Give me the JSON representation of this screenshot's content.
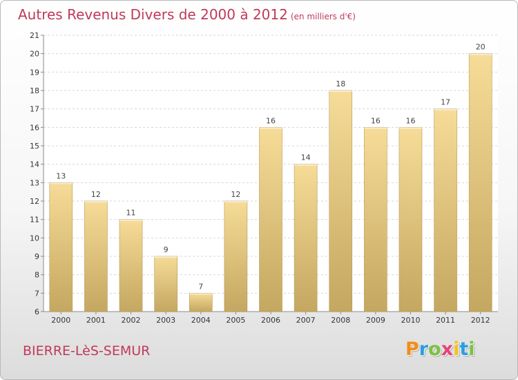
{
  "header": {
    "title": "Autres Revenus Divers de 2000 à 2012",
    "subtitle": "(en milliers d'€)"
  },
  "footer": {
    "commune": "BIERRE-LèS-SEMUR",
    "logo": {
      "letters": [
        "P",
        "r",
        "o",
        "x",
        "i",
        "t",
        "i"
      ],
      "colors": [
        "#f28c1a",
        "#2a9ee0",
        "#7cc142",
        "#e8417a",
        "#f2c21a",
        "#2a9ee0",
        "#7cc142"
      ]
    }
  },
  "colors": {
    "bar_top": "#f6dc98",
    "bar_bottom": "#c4a760",
    "bar_edge": "#b89a55",
    "grid": "#d6d6d6",
    "plot_bg": "#ffffff"
  },
  "chart_data": {
    "type": "bar",
    "title": "Autres Revenus Divers de 2000 à 2012",
    "subtitle": "(en milliers d'€)",
    "categories": [
      "2000",
      "2001",
      "2002",
      "2003",
      "2004",
      "2005",
      "2006",
      "2007",
      "2008",
      "2009",
      "2010",
      "2011",
      "2012"
    ],
    "values": [
      13,
      12,
      11,
      9,
      7,
      12,
      16,
      14,
      18,
      16,
      16,
      17,
      20
    ],
    "xlabel": "",
    "ylabel": "",
    "ylim": [
      6,
      21
    ],
    "yticks": [
      6,
      7,
      8,
      9,
      10,
      11,
      12,
      13,
      14,
      15,
      16,
      17,
      18,
      19,
      20,
      21
    ],
    "grid": true,
    "legend": "none"
  }
}
